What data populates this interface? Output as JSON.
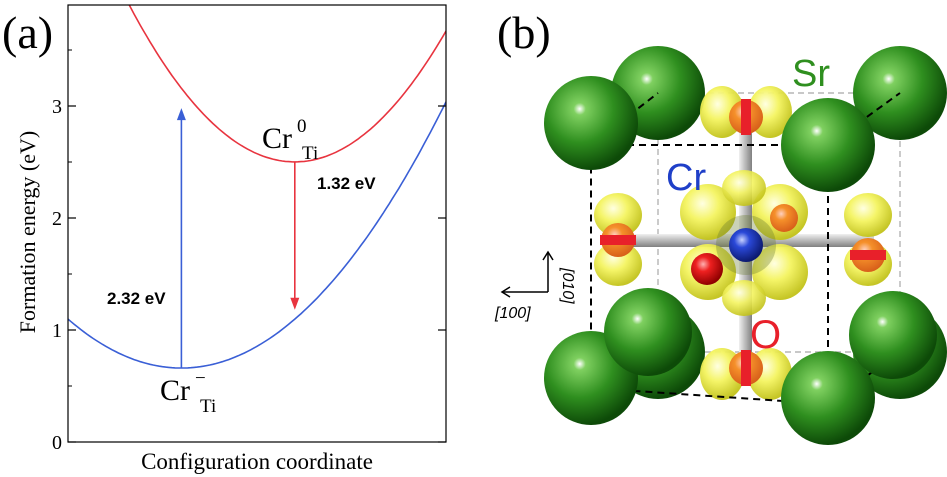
{
  "panel_a": {
    "label": "(a)",
    "xlabel": "Configuration coordinate",
    "ylabel": "Formation energy (eV)",
    "yticks": [
      "0",
      "1",
      "2",
      "3"
    ],
    "state_neutral": {
      "main": "Cr",
      "sub": "Ti",
      "sup": "0"
    },
    "state_minus": {
      "main": "Cr",
      "sub": "Ti",
      "sup": "−"
    },
    "absorption_label": "2.32 eV",
    "emission_label": "1.32 eV",
    "colors": {
      "neutral_curve": "#e8343f",
      "minus_curve": "#3a5fd6",
      "axis": "#000000"
    }
  },
  "chart_data": {
    "type": "line",
    "title": "",
    "xlabel": "Configuration coordinate",
    "ylabel": "Formation energy (eV)",
    "xlim": [
      0,
      1
    ],
    "ylim": [
      0,
      3.9
    ],
    "yticks": [
      0,
      1,
      2,
      3
    ],
    "grid": false,
    "legend": "none",
    "series": [
      {
        "name": "Cr_Ti^0",
        "color": "#e8343f",
        "min_x": 0.6,
        "min_y": 2.5,
        "curvature": 7.3
      },
      {
        "name": "Cr_Ti^-",
        "color": "#3a5fd6",
        "min_x": 0.3,
        "min_y": 0.66,
        "curvature": 4.85
      }
    ],
    "transitions": [
      {
        "label": "2.32 eV",
        "x": 0.3,
        "from": 0.66,
        "to": 2.98,
        "color": "#3a5fd6"
      },
      {
        "label": "1.32 eV",
        "x": 0.6,
        "from": 2.5,
        "to": 1.18,
        "color": "#e8343f"
      }
    ]
  },
  "panel_b": {
    "label": "(b)",
    "atom_labels": {
      "sr": "Sr",
      "cr": "Cr",
      "o": "O"
    },
    "axis_labels": {
      "x": "[100]",
      "y": "[010]"
    },
    "colors": {
      "sr": "#2f8f1f",
      "cr": "#1f3fc8",
      "o": "#e8202a",
      "lobe": "#f0f040",
      "bond": "#c8c8c8"
    }
  }
}
